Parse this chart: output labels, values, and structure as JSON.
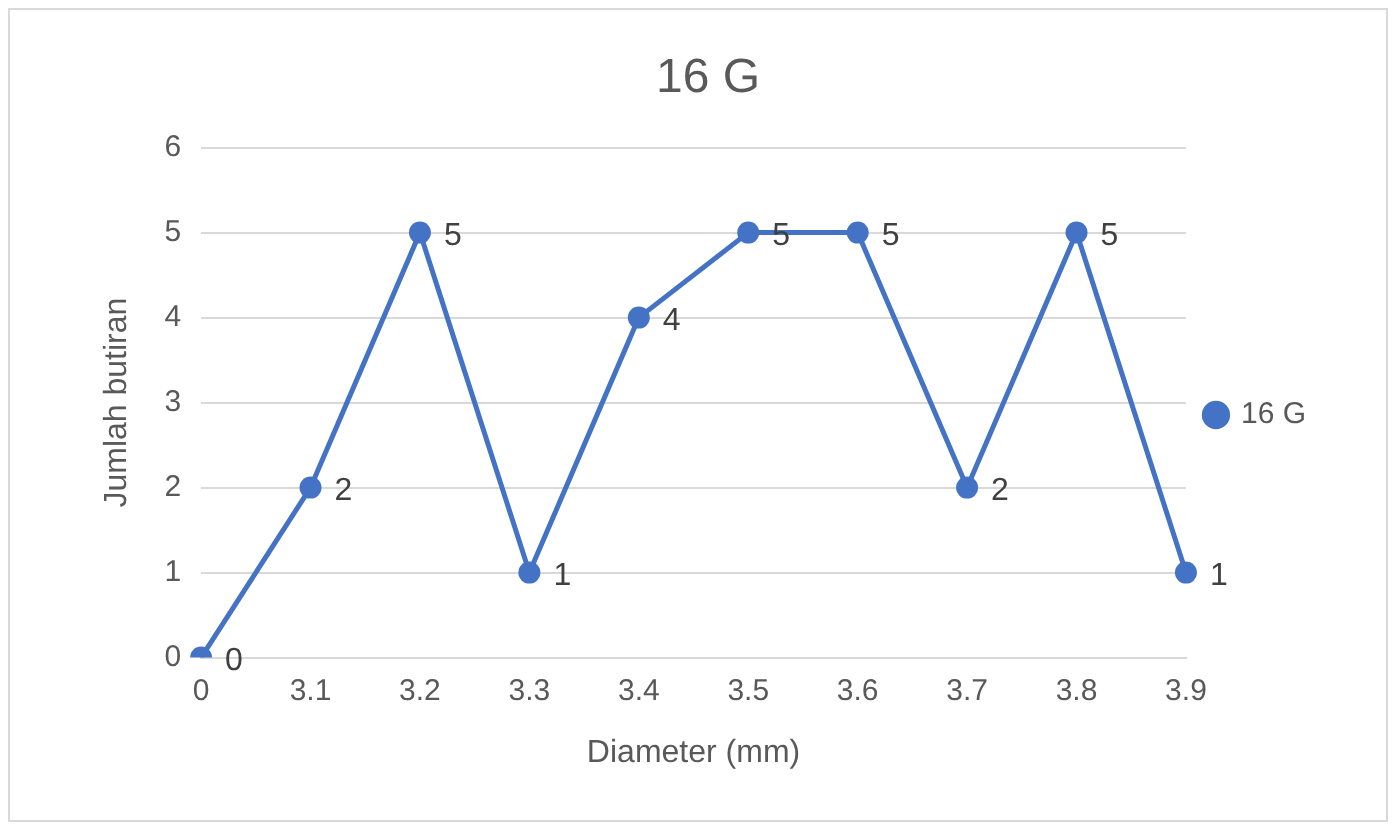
{
  "chart_data": {
    "type": "line",
    "title": "16 G",
    "xlabel": "Diameter (mm)",
    "ylabel": "Jumlah butiran",
    "categories": [
      "0",
      "3.1",
      "3.2",
      "3.3",
      "3.4",
      "3.5",
      "3.6",
      "3.7",
      "3.8",
      "3.9"
    ],
    "series": [
      {
        "name": "16 G",
        "color": "#4472c4",
        "values": [
          0,
          2,
          5,
          1,
          4,
          5,
          5,
          2,
          5,
          1
        ]
      }
    ],
    "ylim": [
      0,
      6
    ],
    "yticks": [
      0,
      1,
      2,
      3,
      4,
      5,
      6
    ],
    "grid": "y",
    "legend": "right",
    "marker": "circle",
    "line_style": "solid",
    "data_labels": true
  }
}
